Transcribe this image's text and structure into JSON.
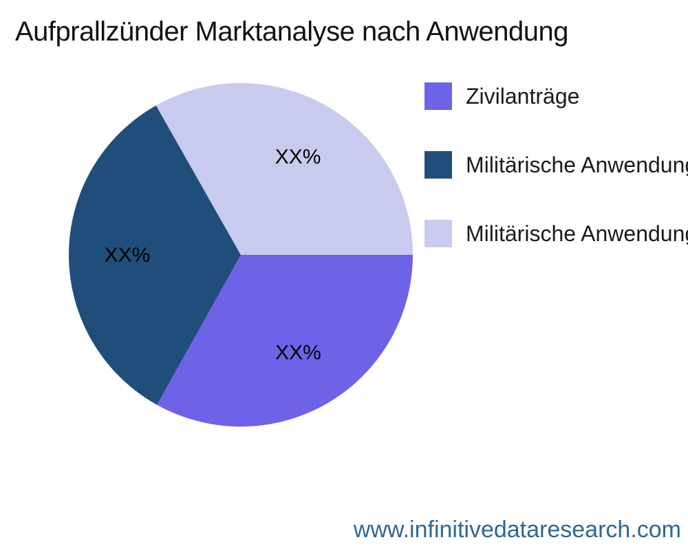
{
  "title": "Aufprallzünder Marktanalyse nach Anwendung",
  "footer": {
    "website": "www.infinitivedataresearch.com",
    "color": "#2F6795"
  },
  "legend": {
    "position": "right"
  },
  "chart_data": {
    "type": "pie",
    "title": "Aufprallzünder Marktanalyse nach Anwendung",
    "categories": [
      "Zivilanträge",
      "Militärische Anwendungen",
      "Militärische Anwendungen"
    ],
    "values": [
      33.1,
      33.7,
      33.2
    ],
    "data_labels": [
      "XX%",
      "XX%",
      "XX%"
    ],
    "colors": [
      "#6E62E9",
      "#204E7B",
      "#C8CAEE"
    ],
    "start_angle_deg": 90,
    "direction": "clockwise",
    "legend_position": "right",
    "label_color": "#000000"
  }
}
